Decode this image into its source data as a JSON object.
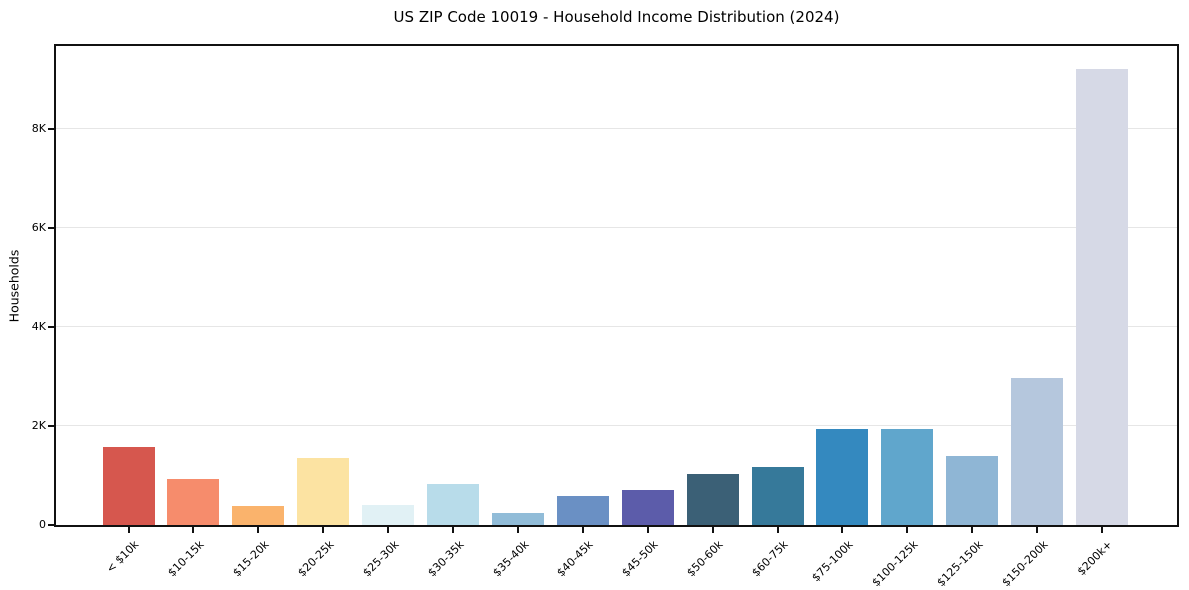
{
  "page": {
    "background": "#ffffff"
  },
  "chart_data": {
    "type": "bar",
    "title": "US ZIP Code 10019 - Household Income Distribution (2024)",
    "xlabel": "",
    "ylabel": "Households",
    "categories": [
      "< $10k",
      "$10-15k",
      "$15-20k",
      "$20-25k",
      "$25-30k",
      "$30-35k",
      "$35-40k",
      "$40-45k",
      "$45-50k",
      "$50-60k",
      "$60-75k",
      "$75-100k",
      "$100-125k",
      "$125-150k",
      "$150-200k",
      "$200k+"
    ],
    "values": [
      1570,
      930,
      380,
      1350,
      400,
      820,
      250,
      590,
      705,
      1025,
      1180,
      1945,
      1945,
      1390,
      2965,
      9200
    ],
    "bar_colors": [
      "#d6574e",
      "#f68c6c",
      "#fab36c",
      "#fce3a2",
      "#e1f1f5",
      "#b8dcea",
      "#91bcd8",
      "#6a90c4",
      "#5c5caa",
      "#3b6076",
      "#36799a",
      "#3489bf",
      "#60a6cc",
      "#8fb6d5",
      "#b5c7dd",
      "#d6d9e6"
    ],
    "ylim": [
      0,
      9666
    ],
    "yticks": [
      {
        "value": 0,
        "label": "0"
      },
      {
        "value": 2000,
        "label": "2K"
      },
      {
        "value": 4000,
        "label": "4K"
      },
      {
        "value": 6000,
        "label": "6K"
      },
      {
        "value": 8000,
        "label": "8K"
      }
    ],
    "grid": "horizontal lines at y ticks",
    "gridline_color": "#e6e6e6",
    "spine_color": "#111111",
    "text_color": "#000000",
    "x_tick_rotation_deg": 45,
    "legend": "none"
  }
}
